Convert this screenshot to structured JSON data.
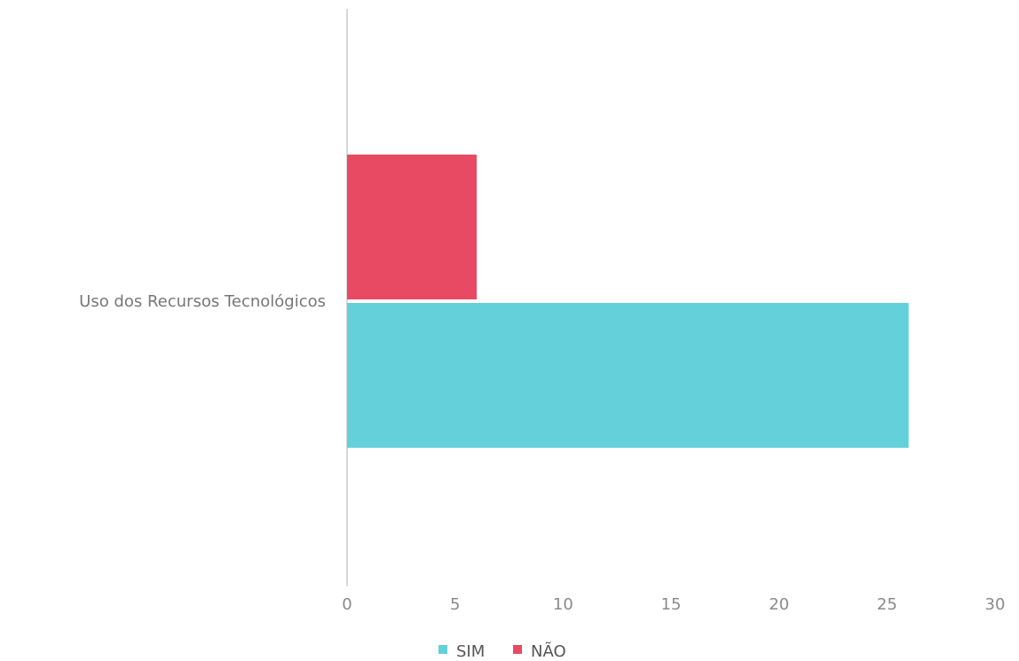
{
  "chart_data": {
    "type": "bar",
    "orientation": "horizontal",
    "categories": [
      "Uso dos Recursos Tecnológicos"
    ],
    "series": [
      {
        "name": "NÃO",
        "values": [
          6
        ],
        "color": "#e84a63"
      },
      {
        "name": "SIM",
        "values": [
          26
        ],
        "color": "#64d0d9"
      }
    ],
    "xlim": [
      0,
      30
    ],
    "x_ticks": [
      "0",
      "5",
      "10",
      "15",
      "20",
      "25",
      "30"
    ],
    "grid": false,
    "legend": {
      "position": "bottom",
      "entries": [
        "SIM",
        "NÃO"
      ]
    }
  }
}
